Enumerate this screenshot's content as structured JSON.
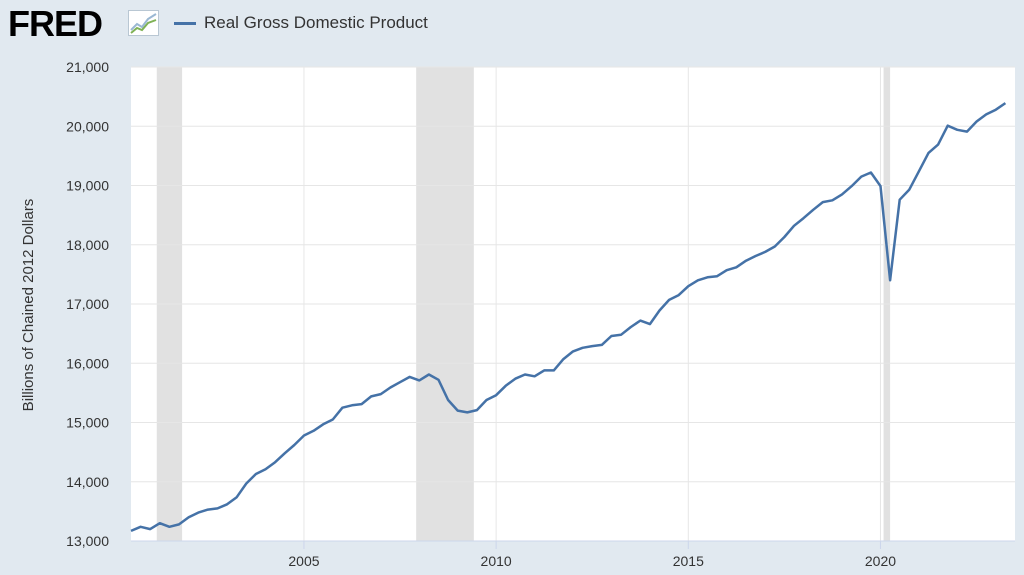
{
  "brand": {
    "logo_text": "FRED",
    "registered_mark": "®"
  },
  "colors": {
    "series": "#4572a7",
    "recession": "#e1e1e1",
    "grid": "#e6e6e6",
    "background": "#e1e9f0",
    "plot_bg": "#ffffff"
  },
  "chart_data": {
    "type": "line",
    "ylabel": "Billions of Chained 2012 Dollars",
    "ylim": [
      13000,
      21000
    ],
    "xlim": [
      2000.5,
      2023.5
    ],
    "yticks": [
      13000,
      14000,
      15000,
      16000,
      17000,
      18000,
      19000,
      20000,
      21000
    ],
    "ytick_labels": [
      "13,000",
      "14,000",
      "15,000",
      "16,000",
      "17,000",
      "18,000",
      "19,000",
      "20,000",
      "21,000"
    ],
    "xticks": [
      2005,
      2010,
      2015,
      2020
    ],
    "xtick_labels": [
      "2005",
      "2010",
      "2015",
      "2020"
    ],
    "grid": true,
    "legend_position": "top-left",
    "recessions": [
      [
        2001.17,
        2001.83
      ],
      [
        2007.92,
        2009.42
      ],
      [
        2020.08,
        2020.25
      ]
    ],
    "series": [
      {
        "name": "Real Gross Domestic Product",
        "x": [
          2000.5,
          2000.75,
          2001.0,
          2001.25,
          2001.5,
          2001.75,
          2002.0,
          2002.25,
          2002.5,
          2002.75,
          2003.0,
          2003.25,
          2003.5,
          2003.75,
          2004.0,
          2004.25,
          2004.5,
          2004.75,
          2005.0,
          2005.25,
          2005.5,
          2005.75,
          2006.0,
          2006.25,
          2006.5,
          2006.75,
          2007.0,
          2007.25,
          2007.5,
          2007.75,
          2008.0,
          2008.25,
          2008.5,
          2008.75,
          2009.0,
          2009.25,
          2009.5,
          2009.75,
          2010.0,
          2010.25,
          2010.5,
          2010.75,
          2011.0,
          2011.25,
          2011.5,
          2011.75,
          2012.0,
          2012.25,
          2012.5,
          2012.75,
          2013.0,
          2013.25,
          2013.5,
          2013.75,
          2014.0,
          2014.25,
          2014.5,
          2014.75,
          2015.0,
          2015.25,
          2015.5,
          2015.75,
          2016.0,
          2016.25,
          2016.5,
          2016.75,
          2017.0,
          2017.25,
          2017.5,
          2017.75,
          2018.0,
          2018.25,
          2018.5,
          2018.75,
          2019.0,
          2019.25,
          2019.5,
          2019.75,
          2020.0,
          2020.25,
          2020.5,
          2020.75,
          2021.0,
          2021.25,
          2021.5,
          2021.75,
          2022.0,
          2022.25,
          2022.5,
          2022.75,
          2023.0,
          2023.25
        ],
        "values": [
          13170,
          13240,
          13200,
          13300,
          13240,
          13280,
          13400,
          13480,
          13530,
          13550,
          13620,
          13740,
          13970,
          14130,
          14210,
          14330,
          14480,
          14620,
          14780,
          14860,
          14970,
          15050,
          15250,
          15290,
          15310,
          15440,
          15480,
          15590,
          15680,
          15770,
          15710,
          15810,
          15720,
          15380,
          15200,
          15170,
          15210,
          15380,
          15460,
          15620,
          15740,
          15810,
          15780,
          15880,
          15880,
          16070,
          16200,
          16260,
          16290,
          16310,
          16460,
          16480,
          16610,
          16720,
          16660,
          16890,
          17070,
          17150,
          17300,
          17400,
          17450,
          17470,
          17570,
          17620,
          17730,
          17810,
          17880,
          17970,
          18130,
          18320,
          18450,
          18590,
          18720,
          18750,
          18850,
          18990,
          19150,
          19220,
          18990,
          17400,
          18760,
          18930,
          19240,
          19550,
          19690,
          20010,
          19940,
          19910,
          20080,
          20200,
          20280,
          20390
        ]
      }
    ]
  }
}
